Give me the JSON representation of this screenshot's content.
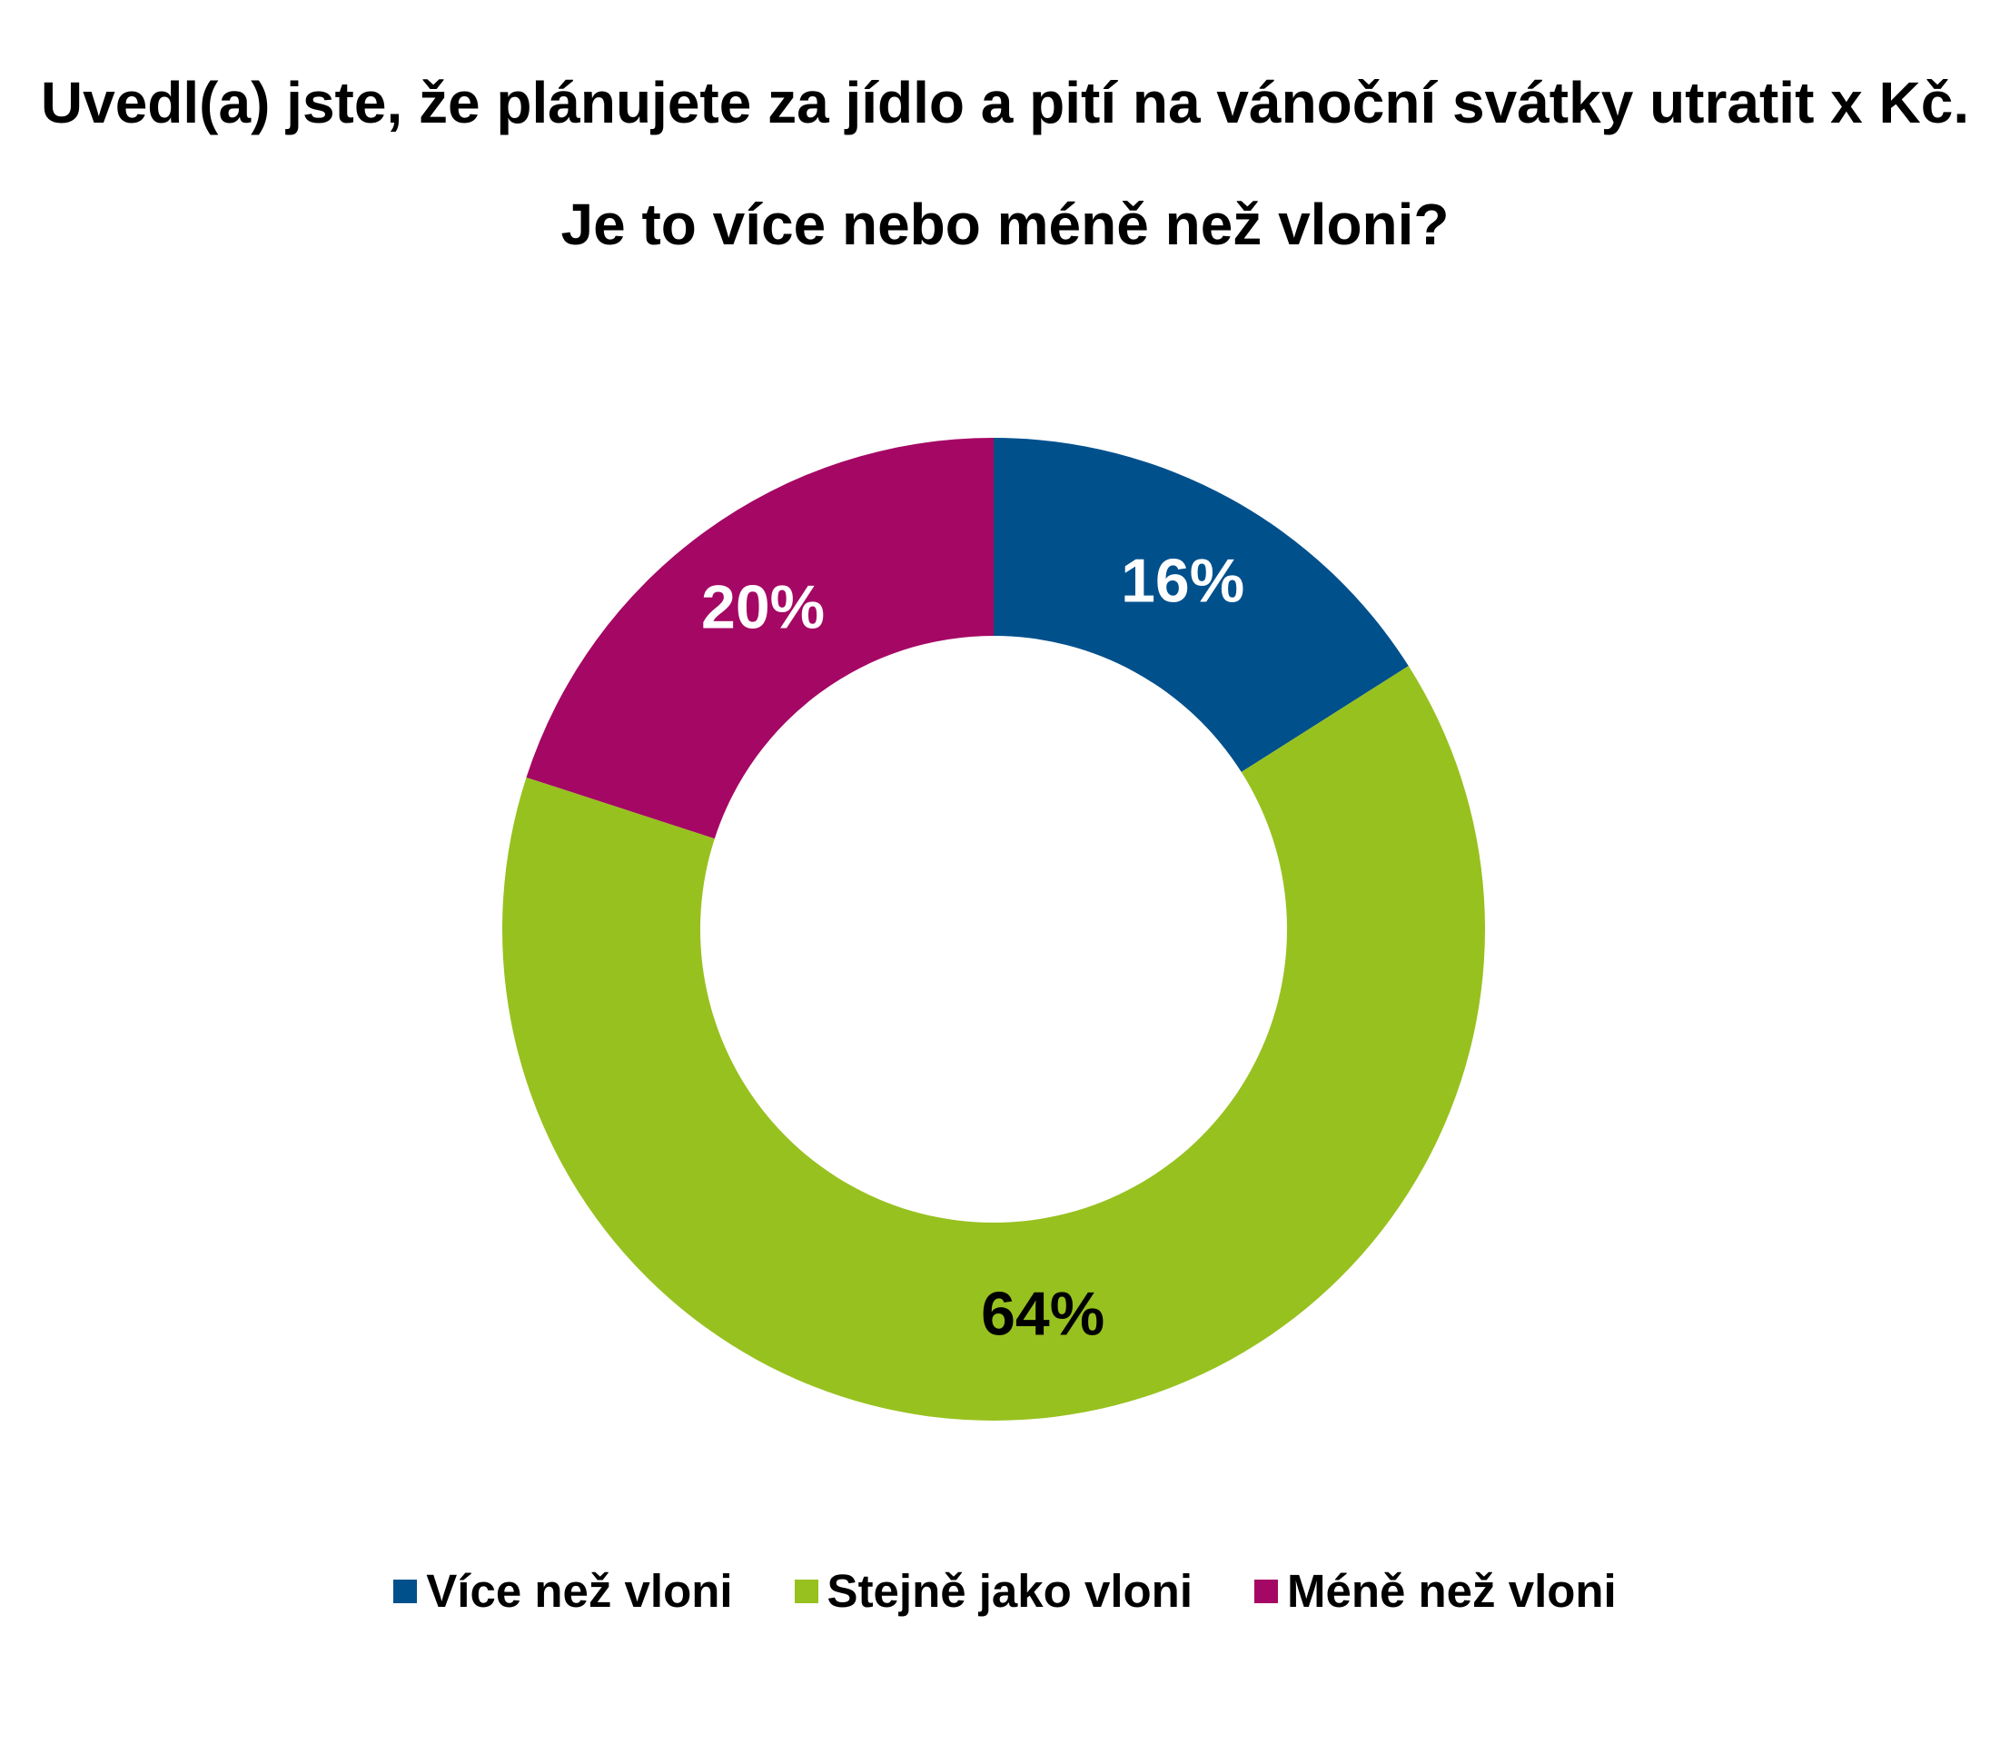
{
  "chart_data": {
    "type": "donut",
    "title": "Uvedl(a) jste, že plánujete za jídlo a pití na vánoční svátky utratit x Kč. Je to více nebo méně než vloni?",
    "categories": [
      "Více než vloni",
      "Stejně jako vloni",
      "Méně než vloni"
    ],
    "values": [
      16,
      64,
      20
    ],
    "value_labels": [
      "16%",
      "64%",
      "20%"
    ],
    "colors": [
      "#00508c",
      "#97c11f",
      "#a50764"
    ],
    "value_label_colors": [
      "#ffffff",
      "#000000",
      "#ffffff"
    ],
    "legend": "bottom"
  }
}
